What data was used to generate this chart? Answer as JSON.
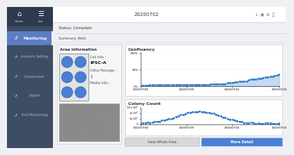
{
  "title_bar_text": "20200702",
  "status_text": "Status: Complete",
  "summary_text": "Summary Well:",
  "area_info_text": "Area Information",
  "cell_info_label": "Cell Info :",
  "cell_info_value": "iPSC-A",
  "passage_label": "Initial Passage :",
  "passage_value": "1",
  "media_label": "Media Info :",
  "confluency_title": "Confluency",
  "colony_title": "Colony Count",
  "date_labels": [
    "2020/07/04",
    "2020/07/09",
    "2020/07/16",
    "2020/07/23"
  ],
  "sidebar_bg": "#3d4d63",
  "sidebar_dark_bg": "#2e3b4e",
  "sidebar_active_bg": "#5b7ec5",
  "main_bg": "#eef0f4",
  "panel_bg": "#ffffff",
  "topbar_bg": "#ffffff",
  "btn_gray_bg": "#d8d8d8",
  "btn_blue_bg": "#4a7fd4",
  "btn_text_gray": "#444444",
  "btn_text_white": "#ffffff",
  "chart_line_color": "#4a90d9",
  "chart_fill_color": "#b8d4f0",
  "chart_dot_color": "#3a7bc8",
  "well_circle_color": "#4a7fd4",
  "text_dark": "#333333",
  "text_mid": "#555555",
  "text_light": "#aabbcc",
  "border_color": "#cccccc"
}
